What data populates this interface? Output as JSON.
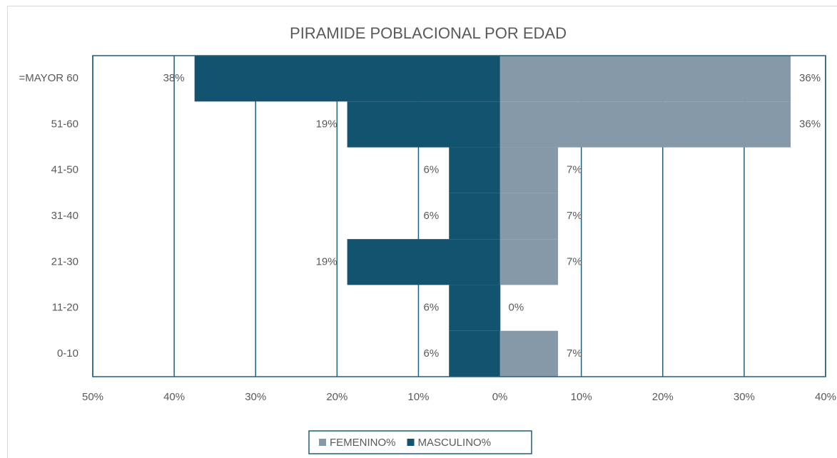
{
  "chart_data": {
    "type": "pyramid",
    "title": "PIRAMIDE POBLACIONAL  POR EDAD",
    "categories": [
      "0-10",
      "11-20",
      "21-30",
      "31-40",
      "41-50",
      "51-60",
      "=MAYOR 60"
    ],
    "series": [
      {
        "name": "FEMENINO%",
        "color": "#8699a9",
        "values": [
          7.14,
          0,
          7.14,
          7.14,
          7.14,
          35.71,
          35.71
        ],
        "value_labels": [
          "7%",
          "0%",
          "7%",
          "7%",
          "7%",
          "36%",
          "36%"
        ]
      },
      {
        "name": "MASCULINO%",
        "color": "#12546f",
        "values": [
          -6.25,
          -6.25,
          -18.75,
          -6.25,
          -6.25,
          -18.75,
          -37.5
        ],
        "value_labels": [
          "6%",
          "6%",
          "19%",
          "6%",
          "6%",
          "19%",
          "38%"
        ]
      }
    ],
    "xlim": [
      -50,
      40
    ],
    "xticks": [
      {
        "value": -50,
        "label": "50%"
      },
      {
        "value": -40,
        "label": "40%"
      },
      {
        "value": -30,
        "label": "30%"
      },
      {
        "value": -20,
        "label": "20%"
      },
      {
        "value": -10,
        "label": "10%"
      },
      {
        "value": 0,
        "label": "0%"
      },
      {
        "value": 10,
        "label": "10%"
      },
      {
        "value": 20,
        "label": "20%"
      },
      {
        "value": 30,
        "label": "30%"
      },
      {
        "value": 40,
        "label": "40%"
      }
    ],
    "grid": true,
    "legend": "bottom"
  }
}
